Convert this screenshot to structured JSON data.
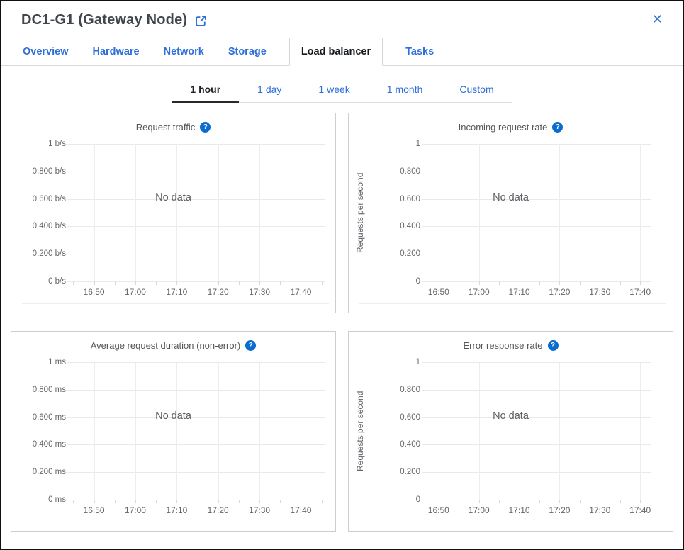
{
  "icons": {
    "external_link": "open-in-new-window",
    "close": "✕",
    "help": "?"
  },
  "header": {
    "title": "DC1-G1 (Gateway Node)"
  },
  "tabs": {
    "items": [
      {
        "label": "Overview",
        "active": false
      },
      {
        "label": "Hardware",
        "active": false
      },
      {
        "label": "Network",
        "active": false
      },
      {
        "label": "Storage",
        "active": false
      },
      {
        "label": "Load balancer",
        "active": true
      },
      {
        "label": "Tasks",
        "active": false
      }
    ]
  },
  "time_range": {
    "items": [
      {
        "label": "1 hour",
        "active": true
      },
      {
        "label": "1 day",
        "active": false
      },
      {
        "label": "1 week",
        "active": false
      },
      {
        "label": "1 month",
        "active": false
      },
      {
        "label": "Custom",
        "active": false
      }
    ]
  },
  "chart_data": [
    {
      "type": "line",
      "title": "Request traffic",
      "xlabel": "",
      "ylabel": "",
      "y_ticks": [
        "1 b/s",
        "0.800 b/s",
        "0.600 b/s",
        "0.400 b/s",
        "0.200 b/s",
        "0 b/s"
      ],
      "x_ticks": [
        "16:50",
        "17:00",
        "17:10",
        "17:20",
        "17:30",
        "17:40"
      ],
      "ylim": [
        0,
        1
      ],
      "series": [],
      "no_data": "No data",
      "grid": true,
      "legend_position": "none"
    },
    {
      "type": "line",
      "title": "Incoming request rate",
      "xlabel": "",
      "ylabel": "Requests per second",
      "y_ticks": [
        "1",
        "0.800",
        "0.600",
        "0.400",
        "0.200",
        "0"
      ],
      "x_ticks": [
        "16:50",
        "17:00",
        "17:10",
        "17:20",
        "17:30",
        "17:40"
      ],
      "ylim": [
        0,
        1
      ],
      "series": [],
      "no_data": "No data",
      "grid": true,
      "legend_position": "none"
    },
    {
      "type": "line",
      "title": "Average request duration (non-error)",
      "xlabel": "",
      "ylabel": "",
      "y_ticks": [
        "1 ms",
        "0.800 ms",
        "0.600 ms",
        "0.400 ms",
        "0.200 ms",
        "0 ms"
      ],
      "x_ticks": [
        "16:50",
        "17:00",
        "17:10",
        "17:20",
        "17:30",
        "17:40"
      ],
      "ylim": [
        0,
        1
      ],
      "series": [],
      "no_data": "No data",
      "grid": true,
      "legend_position": "none"
    },
    {
      "type": "line",
      "title": "Error response rate",
      "xlabel": "",
      "ylabel": "Requests per second",
      "y_ticks": [
        "1",
        "0.800",
        "0.600",
        "0.400",
        "0.200",
        "0"
      ],
      "x_ticks": [
        "16:50",
        "17:00",
        "17:10",
        "17:20",
        "17:30",
        "17:40"
      ],
      "ylim": [
        0,
        1
      ],
      "series": [],
      "no_data": "No data",
      "grid": true,
      "legend_position": "none"
    }
  ]
}
